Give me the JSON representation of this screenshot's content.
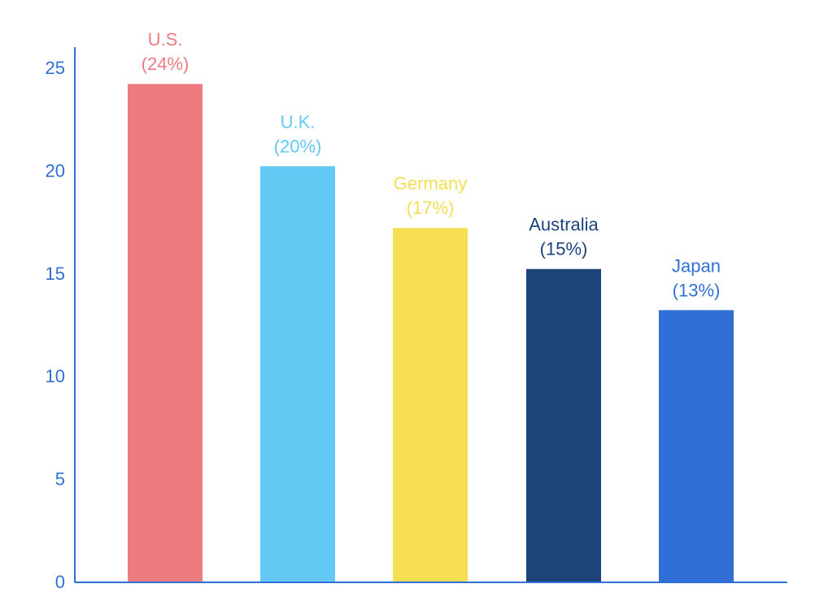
{
  "chart_data": {
    "type": "bar",
    "title": "",
    "xlabel": "",
    "ylabel": "",
    "categories": [
      "U.S.",
      "U.K.",
      "Germany",
      "Australia",
      "Japan"
    ],
    "values": [
      24.2,
      20.2,
      17.2,
      15.2,
      13.2
    ],
    "value_labels": [
      "(24%)",
      "(20%)",
      "(17%)",
      "(15%)",
      "(13%)"
    ],
    "colors": [
      "#ee7b80",
      "#64c8f5",
      "#f6de52",
      "#1c437a",
      "#3070d6"
    ],
    "ylim": [
      0,
      25
    ],
    "yticks": [
      0,
      5,
      10,
      15,
      20,
      25
    ],
    "axis_color": "#2f6fd6",
    "grid": false,
    "legend": "none"
  }
}
